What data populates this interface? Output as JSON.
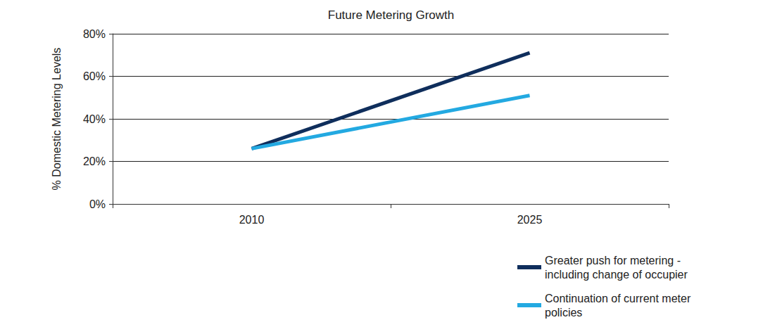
{
  "chart_data": {
    "type": "line",
    "title": "Future Metering Growth",
    "y_label": "% Domestic Metering Levels",
    "categories": [
      "2010",
      "2025"
    ],
    "series": [
      {
        "name": "Greater push for metering - including change of occupier",
        "color": "#0f2e5c",
        "values": [
          26,
          71
        ]
      },
      {
        "name": "Continuation of current meter policies",
        "color": "#23a9e1",
        "values": [
          26,
          51
        ]
      }
    ],
    "ylim": [
      0,
      80
    ],
    "yticks": [
      {
        "value": 0,
        "label": "0%"
      },
      {
        "value": 20,
        "label": "20%"
      },
      {
        "value": 40,
        "label": "40%"
      },
      {
        "value": 60,
        "label": "60%"
      },
      {
        "value": 80,
        "label": "80%"
      }
    ],
    "grid": true,
    "legend": "bottom-right"
  }
}
